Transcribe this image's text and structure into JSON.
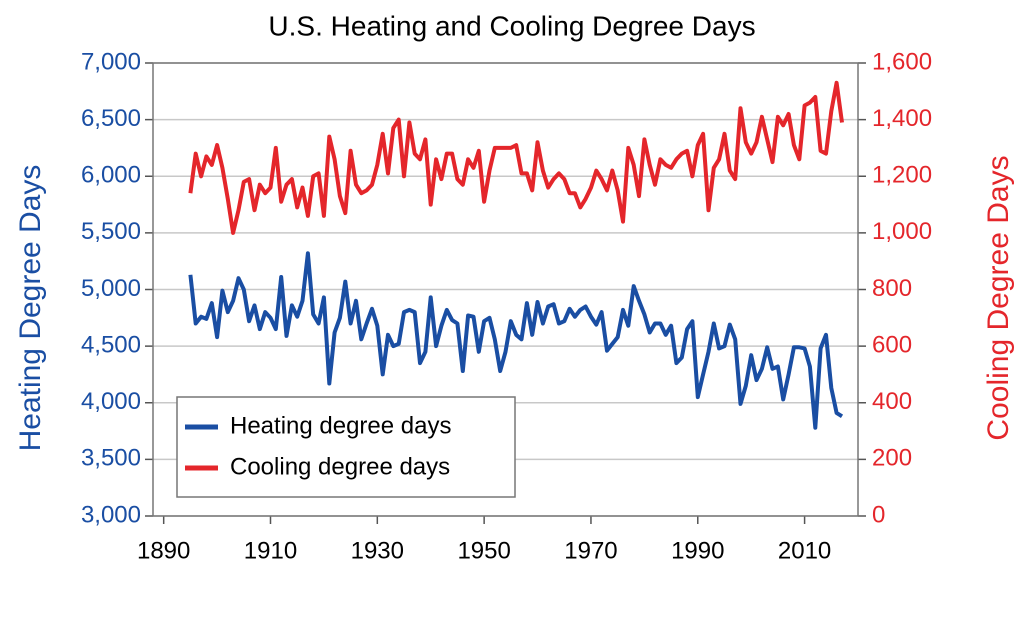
{
  "chart_data": {
    "type": "line",
    "title": "U.S. Heating and Cooling Degree Days",
    "y_label": "Heating Degree Days",
    "y2_label": "Cooling Degree Days",
    "x": [
      1895,
      1896,
      1897,
      1898,
      1899,
      1900,
      1901,
      1902,
      1903,
      1904,
      1905,
      1906,
      1907,
      1908,
      1909,
      1910,
      1911,
      1912,
      1913,
      1914,
      1915,
      1916,
      1917,
      1918,
      1919,
      1920,
      1921,
      1922,
      1923,
      1924,
      1925,
      1926,
      1927,
      1928,
      1929,
      1930,
      1931,
      1932,
      1933,
      1934,
      1935,
      1936,
      1937,
      1938,
      1939,
      1940,
      1941,
      1942,
      1943,
      1944,
      1945,
      1946,
      1947,
      1948,
      1949,
      1950,
      1951,
      1952,
      1953,
      1954,
      1955,
      1956,
      1957,
      1958,
      1959,
      1960,
      1961,
      1962,
      1963,
      1964,
      1965,
      1966,
      1967,
      1968,
      1969,
      1970,
      1971,
      1972,
      1973,
      1974,
      1975,
      1976,
      1977,
      1978,
      1979,
      1980,
      1981,
      1982,
      1983,
      1984,
      1985,
      1986,
      1987,
      1988,
      1989,
      1990,
      1991,
      1992,
      1993,
      1994,
      1995,
      1996,
      1997,
      1998,
      1999,
      2000,
      2001,
      2002,
      2003,
      2004,
      2005,
      2006,
      2007,
      2008,
      2009,
      2010,
      2011,
      2012,
      2013,
      2014,
      2015,
      2016,
      2017
    ],
    "series": [
      {
        "name": "Heating degree days",
        "color": "#1a4ea3",
        "axis": "y",
        "values": [
          5130,
          4700,
          4760,
          4740,
          4880,
          4580,
          4990,
          4800,
          4900,
          5100,
          5000,
          4720,
          4860,
          4650,
          4800,
          4750,
          4650,
          5110,
          4590,
          4860,
          4760,
          4900,
          5320,
          4780,
          4700,
          4930,
          4170,
          4620,
          4750,
          5070,
          4700,
          4900,
          4560,
          4700,
          4830,
          4680,
          4250,
          4600,
          4500,
          4520,
          4800,
          4820,
          4800,
          4350,
          4450,
          4930,
          4500,
          4680,
          4820,
          4730,
          4700,
          4280,
          4770,
          4760,
          4450,
          4720,
          4750,
          4560,
          4280,
          4450,
          4720,
          4600,
          4560,
          4880,
          4600,
          4890,
          4700,
          4850,
          4870,
          4700,
          4720,
          4830,
          4760,
          4820,
          4850,
          4760,
          4690,
          4800,
          4460,
          4520,
          4580,
          4820,
          4680,
          5030,
          4900,
          4780,
          4620,
          4700,
          4700,
          4600,
          4680,
          4350,
          4400,
          4650,
          4720,
          4050,
          4250,
          4450,
          4700,
          4480,
          4500,
          4690,
          4560,
          3990,
          4150,
          4420,
          4200,
          4300,
          4490,
          4300,
          4320,
          4030,
          4250,
          4490,
          4490,
          4480,
          4320,
          3780,
          4480,
          4600,
          4130,
          3910,
          3880
        ]
      },
      {
        "name": "Cooling degree days",
        "color": "#e4262b",
        "axis": "y2",
        "values": [
          1140,
          1280,
          1200,
          1270,
          1240,
          1310,
          1230,
          1120,
          1000,
          1080,
          1180,
          1190,
          1080,
          1170,
          1140,
          1160,
          1300,
          1110,
          1170,
          1190,
          1090,
          1160,
          1060,
          1200,
          1210,
          1060,
          1340,
          1260,
          1130,
          1070,
          1290,
          1170,
          1140,
          1150,
          1170,
          1240,
          1350,
          1210,
          1370,
          1400,
          1200,
          1390,
          1280,
          1260,
          1330,
          1100,
          1260,
          1190,
          1280,
          1280,
          1190,
          1170,
          1260,
          1230,
          1290,
          1110,
          1220,
          1300,
          1300,
          1300,
          1300,
          1310,
          1210,
          1210,
          1150,
          1320,
          1220,
          1160,
          1190,
          1210,
          1190,
          1140,
          1140,
          1090,
          1120,
          1160,
          1220,
          1190,
          1150,
          1220,
          1150,
          1040,
          1300,
          1240,
          1130,
          1330,
          1240,
          1170,
          1260,
          1240,
          1230,
          1260,
          1280,
          1290,
          1200,
          1310,
          1350,
          1080,
          1230,
          1260,
          1350,
          1220,
          1190,
          1440,
          1320,
          1280,
          1320,
          1410,
          1330,
          1250,
          1410,
          1380,
          1420,
          1310,
          1260,
          1450,
          1460,
          1480,
          1290,
          1280,
          1430,
          1530,
          1390
        ]
      }
    ],
    "xlim": [
      1888,
      2020
    ],
    "xticks": [
      1890,
      1910,
      1930,
      1950,
      1970,
      1990,
      2010
    ],
    "ylim": [
      3000,
      7000
    ],
    "yticks": [
      {
        "value": 3000,
        "label": "3,000"
      },
      {
        "value": 3500,
        "label": "3,500"
      },
      {
        "value": 4000,
        "label": "4,000"
      },
      {
        "value": 4500,
        "label": "4,500"
      },
      {
        "value": 5000,
        "label": "5,000"
      },
      {
        "value": 5500,
        "label": "5,500"
      },
      {
        "value": 6000,
        "label": "6,000"
      },
      {
        "value": 6500,
        "label": "6,500"
      },
      {
        "value": 7000,
        "label": "7,000"
      }
    ],
    "y2lim": [
      0,
      1600
    ],
    "y2ticks": [
      0,
      200,
      400,
      600,
      800,
      {
        "value": 1000,
        "label": "1,000"
      },
      {
        "value": 1200,
        "label": "1,200"
      },
      {
        "value": 1400,
        "label": "1,400"
      },
      {
        "value": 1600,
        "label": "1,600"
      }
    ],
    "grid": true,
    "legend": "lower-left"
  }
}
